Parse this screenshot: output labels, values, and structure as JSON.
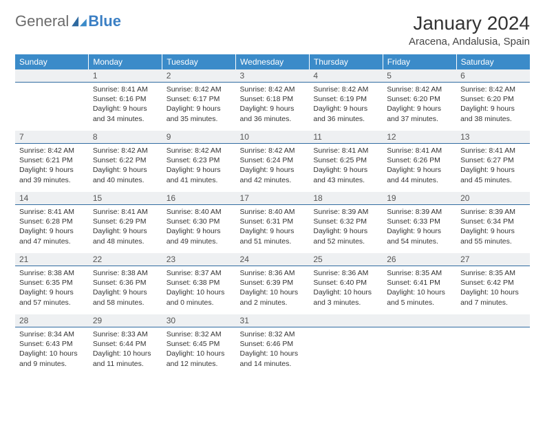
{
  "logo": {
    "text1": "General",
    "text2": "Blue"
  },
  "title": "January 2024",
  "location": "Aracena, Andalusia, Spain",
  "day_headers": [
    "Sunday",
    "Monday",
    "Tuesday",
    "Wednesday",
    "Thursday",
    "Friday",
    "Saturday"
  ],
  "colors": {
    "header_bg": "#3b8bc9",
    "header_fg": "#ffffff",
    "daynum_bg": "#eef0f2",
    "daynum_border": "#2f6aa0",
    "text": "#333333"
  },
  "weeks": [
    [
      {
        "n": "",
        "sr": "",
        "ss": "",
        "d1": "",
        "d2": ""
      },
      {
        "n": "1",
        "sr": "Sunrise: 8:41 AM",
        "ss": "Sunset: 6:16 PM",
        "d1": "Daylight: 9 hours",
        "d2": "and 34 minutes."
      },
      {
        "n": "2",
        "sr": "Sunrise: 8:42 AM",
        "ss": "Sunset: 6:17 PM",
        "d1": "Daylight: 9 hours",
        "d2": "and 35 minutes."
      },
      {
        "n": "3",
        "sr": "Sunrise: 8:42 AM",
        "ss": "Sunset: 6:18 PM",
        "d1": "Daylight: 9 hours",
        "d2": "and 36 minutes."
      },
      {
        "n": "4",
        "sr": "Sunrise: 8:42 AM",
        "ss": "Sunset: 6:19 PM",
        "d1": "Daylight: 9 hours",
        "d2": "and 36 minutes."
      },
      {
        "n": "5",
        "sr": "Sunrise: 8:42 AM",
        "ss": "Sunset: 6:20 PM",
        "d1": "Daylight: 9 hours",
        "d2": "and 37 minutes."
      },
      {
        "n": "6",
        "sr": "Sunrise: 8:42 AM",
        "ss": "Sunset: 6:20 PM",
        "d1": "Daylight: 9 hours",
        "d2": "and 38 minutes."
      }
    ],
    [
      {
        "n": "7",
        "sr": "Sunrise: 8:42 AM",
        "ss": "Sunset: 6:21 PM",
        "d1": "Daylight: 9 hours",
        "d2": "and 39 minutes."
      },
      {
        "n": "8",
        "sr": "Sunrise: 8:42 AM",
        "ss": "Sunset: 6:22 PM",
        "d1": "Daylight: 9 hours",
        "d2": "and 40 minutes."
      },
      {
        "n": "9",
        "sr": "Sunrise: 8:42 AM",
        "ss": "Sunset: 6:23 PM",
        "d1": "Daylight: 9 hours",
        "d2": "and 41 minutes."
      },
      {
        "n": "10",
        "sr": "Sunrise: 8:42 AM",
        "ss": "Sunset: 6:24 PM",
        "d1": "Daylight: 9 hours",
        "d2": "and 42 minutes."
      },
      {
        "n": "11",
        "sr": "Sunrise: 8:41 AM",
        "ss": "Sunset: 6:25 PM",
        "d1": "Daylight: 9 hours",
        "d2": "and 43 minutes."
      },
      {
        "n": "12",
        "sr": "Sunrise: 8:41 AM",
        "ss": "Sunset: 6:26 PM",
        "d1": "Daylight: 9 hours",
        "d2": "and 44 minutes."
      },
      {
        "n": "13",
        "sr": "Sunrise: 8:41 AM",
        "ss": "Sunset: 6:27 PM",
        "d1": "Daylight: 9 hours",
        "d2": "and 45 minutes."
      }
    ],
    [
      {
        "n": "14",
        "sr": "Sunrise: 8:41 AM",
        "ss": "Sunset: 6:28 PM",
        "d1": "Daylight: 9 hours",
        "d2": "and 47 minutes."
      },
      {
        "n": "15",
        "sr": "Sunrise: 8:41 AM",
        "ss": "Sunset: 6:29 PM",
        "d1": "Daylight: 9 hours",
        "d2": "and 48 minutes."
      },
      {
        "n": "16",
        "sr": "Sunrise: 8:40 AM",
        "ss": "Sunset: 6:30 PM",
        "d1": "Daylight: 9 hours",
        "d2": "and 49 minutes."
      },
      {
        "n": "17",
        "sr": "Sunrise: 8:40 AM",
        "ss": "Sunset: 6:31 PM",
        "d1": "Daylight: 9 hours",
        "d2": "and 51 minutes."
      },
      {
        "n": "18",
        "sr": "Sunrise: 8:39 AM",
        "ss": "Sunset: 6:32 PM",
        "d1": "Daylight: 9 hours",
        "d2": "and 52 minutes."
      },
      {
        "n": "19",
        "sr": "Sunrise: 8:39 AM",
        "ss": "Sunset: 6:33 PM",
        "d1": "Daylight: 9 hours",
        "d2": "and 54 minutes."
      },
      {
        "n": "20",
        "sr": "Sunrise: 8:39 AM",
        "ss": "Sunset: 6:34 PM",
        "d1": "Daylight: 9 hours",
        "d2": "and 55 minutes."
      }
    ],
    [
      {
        "n": "21",
        "sr": "Sunrise: 8:38 AM",
        "ss": "Sunset: 6:35 PM",
        "d1": "Daylight: 9 hours",
        "d2": "and 57 minutes."
      },
      {
        "n": "22",
        "sr": "Sunrise: 8:38 AM",
        "ss": "Sunset: 6:36 PM",
        "d1": "Daylight: 9 hours",
        "d2": "and 58 minutes."
      },
      {
        "n": "23",
        "sr": "Sunrise: 8:37 AM",
        "ss": "Sunset: 6:38 PM",
        "d1": "Daylight: 10 hours",
        "d2": "and 0 minutes."
      },
      {
        "n": "24",
        "sr": "Sunrise: 8:36 AM",
        "ss": "Sunset: 6:39 PM",
        "d1": "Daylight: 10 hours",
        "d2": "and 2 minutes."
      },
      {
        "n": "25",
        "sr": "Sunrise: 8:36 AM",
        "ss": "Sunset: 6:40 PM",
        "d1": "Daylight: 10 hours",
        "d2": "and 3 minutes."
      },
      {
        "n": "26",
        "sr": "Sunrise: 8:35 AM",
        "ss": "Sunset: 6:41 PM",
        "d1": "Daylight: 10 hours",
        "d2": "and 5 minutes."
      },
      {
        "n": "27",
        "sr": "Sunrise: 8:35 AM",
        "ss": "Sunset: 6:42 PM",
        "d1": "Daylight: 10 hours",
        "d2": "and 7 minutes."
      }
    ],
    [
      {
        "n": "28",
        "sr": "Sunrise: 8:34 AM",
        "ss": "Sunset: 6:43 PM",
        "d1": "Daylight: 10 hours",
        "d2": "and 9 minutes."
      },
      {
        "n": "29",
        "sr": "Sunrise: 8:33 AM",
        "ss": "Sunset: 6:44 PM",
        "d1": "Daylight: 10 hours",
        "d2": "and 11 minutes."
      },
      {
        "n": "30",
        "sr": "Sunrise: 8:32 AM",
        "ss": "Sunset: 6:45 PM",
        "d1": "Daylight: 10 hours",
        "d2": "and 12 minutes."
      },
      {
        "n": "31",
        "sr": "Sunrise: 8:32 AM",
        "ss": "Sunset: 6:46 PM",
        "d1": "Daylight: 10 hours",
        "d2": "and 14 minutes."
      },
      {
        "n": "",
        "sr": "",
        "ss": "",
        "d1": "",
        "d2": ""
      },
      {
        "n": "",
        "sr": "",
        "ss": "",
        "d1": "",
        "d2": ""
      },
      {
        "n": "",
        "sr": "",
        "ss": "",
        "d1": "",
        "d2": ""
      }
    ]
  ]
}
